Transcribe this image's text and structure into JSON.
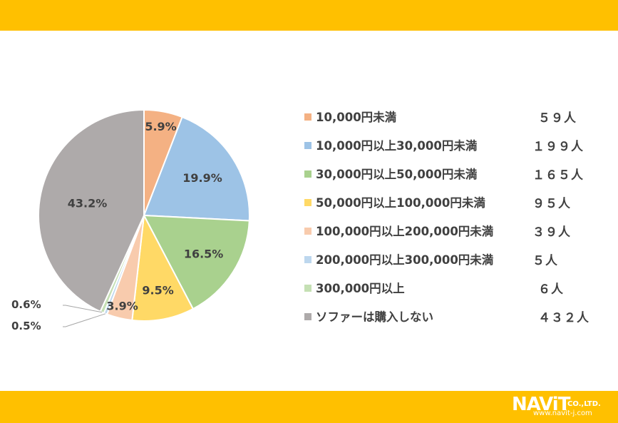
{
  "colors": {
    "banner": "#FFC000",
    "text": "#404040"
  },
  "chart_data": {
    "type": "pie",
    "start_angle_deg": 0,
    "direction": "clockwise",
    "series": [
      {
        "name": "10,000円未満",
        "value": 5.9,
        "label": "5.9%",
        "count": "５９人",
        "color": "#F4B183"
      },
      {
        "name": "10,000円以上30,000円未満",
        "value": 19.9,
        "label": "19.9%",
        "count": "１９９人",
        "color": "#9DC3E6"
      },
      {
        "name": "30,000円以上50,000円未満",
        "value": 16.5,
        "label": "16.5%",
        "count": "１６５人",
        "color": "#A9D18E"
      },
      {
        "name": "50,000円以上100,000円未満",
        "value": 9.5,
        "label": "9.5%",
        "count": "９５人",
        "color": "#FFD966"
      },
      {
        "name": "100,000円以上200,000円未満",
        "value": 3.9,
        "label": "3.9%",
        "count": "３９人",
        "color": "#F8CBAD"
      },
      {
        "name": "200,000円以上300,000円未満",
        "value": 0.5,
        "label": "0.5%",
        "count": "５人",
        "color": "#BDD7EE"
      },
      {
        "name": "300,000円以上",
        "value": 0.6,
        "label": "0.6%",
        "count": "６人",
        "color": "#C5E0B4"
      },
      {
        "name": "ソファーは購入しない",
        "value": 43.2,
        "label": "43.2%",
        "count": "４３２人",
        "color": "#AEAAAA"
      }
    ]
  },
  "logo": {
    "brand": "NAViT",
    "suffix": "CO.,LTD.",
    "url": "www.navit-j.com"
  }
}
